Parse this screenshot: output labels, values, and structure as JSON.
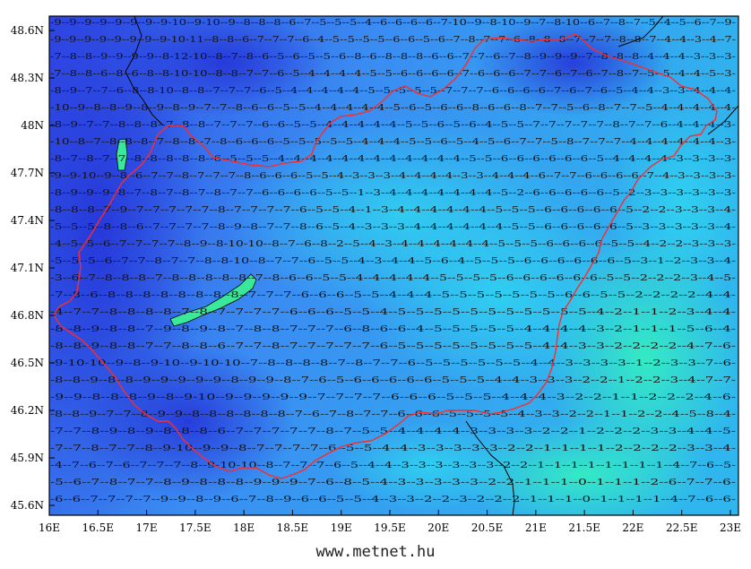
{
  "map": {
    "lon_ticks": [
      "16E",
      "16.5E",
      "17E",
      "17.5E",
      "18E",
      "18.5E",
      "19E",
      "19.5E",
      "20E",
      "20.5E",
      "21E",
      "21.5E",
      "22E",
      "22.5E",
      "23E"
    ],
    "lat_ticks": [
      "48.6N",
      "48.3N",
      "48N",
      "47.7N",
      "47.4N",
      "47.1N",
      "46.8N",
      "46.5N",
      "46.2N",
      "45.9N",
      "45.6N"
    ],
    "colors": {
      "deep_blue": "#2f3fe0",
      "mid_blue": "#3b7cf0",
      "cyan": "#2ec8ee",
      "mint": "#33e8c0",
      "lake_green": "#39e89a",
      "border_red": "#ff2a2a",
      "border_black": "#000000"
    },
    "value_rows": [
      "-9--9--9--9--9--9--9--9-10--9-10--9--8--8--8--6--7--5--5--5--4--6--6--6--6--7-10--9--8-10--9--7--8-10--6--7--8--7--5--4--5--6--7--9-",
      "-9--9--9--9--9--9--9--9-10-11--8--8--6--7--7--7--6--4--5--5--5--5--6--6--5--6--7--8--7--7--6--8--8--8--7--7--7--8--8--7--4--4--3--4--7-",
      "-7--8--8--9--9--9--9--8-12-10--8--7--8--6--5--6--5--5--6--8--6--8--8--8--6--6--7--7--6--7--8--9--9--9--7--8--8--8--4--4--4--3--3--3-",
      "-7--8--8--6--8--6--8--8-10-10--8--8--7--7--6--5--4--4--4--4--5--5--6--6--6--6--7--6--6--6--7--7--6--7--6--7--8--7--5--5--4--4--5--3-",
      "-8--9--7--7--6--8--8-10--8--8--7--7--7--6--5--4--4--4--4--4--5--5--5--5--5--7--7--7--6--6--6--6--7--6--7--6--5--4--4--3--3--4--4--4-",
      "-10--9--8--8--9--8--9--8--9--7--7--8--6--6--5--5--4--4--4--4--4--5--6--5--6--6--8--6--6--8--7--7--5--6--8--7--7--5--4--4--4--4--4-",
      "-8--9--7--7--8--8--8--7--8--8--7--7--7--6--6--5--5--4--4--4--4--4--5--5--6--5--6--4--5--5--7--7--7--7--7--8--7--7--6--4--4--4--3-",
      "-10--8--7--8--8--8--7--8--8--7--8--6--6--6--5--5--5--5--5--4--4--4--5--5--6--5--4--5--6--7--7--5--8--7--7--7--4--4--4--4--4--4--3-",
      "-8--7--8--7--7--8--8--8--8--8--6--5--5--5--4--4--4--4--4--4--4--4--4--4--4--4--5--5--6--6--6--6--6--6--5--4--4--4--4--3--3--3--3-",
      "-9--9-10--9--8--6--7--7--8--7--7--7--8--6--6--6--5--5--4--3--3--3--4--4--4--4--3--3--4--4--4--6--7--7--6--6--6--6--7--4--3--3--3--3-",
      "-8--9--9--9--8--7--8--7--8--7--8--7--7--6--6--6--6--5--5--1--3--4--4--4--4--4--4--4--5--2--6--6--6--6--6--5--2--3--3--3--3--3--3-",
      "-8--8--8--7--9--7--7--7--7--7--8--7--7--7--7--6--5--5--4--1--3--4--4--4--4--4--4--5--5--5--6--6--6--6--6--5--2--2--3--3--3--4-",
      "-5--5--5--8--8--6--7--7--7--7--8--9--8--7--7--8--6--5--4--3--3--3--4--4--4--4--4--4--5--5--6--6--6--6--6--5--3--3--3--3--3--4-",
      "-4--5--5--6--7--7--7--7--8--9--8-10-10--8--7--6--8--2--5--4--3--4--4--4--4--4--4--5--5--5--6--6--6--6--5--5--4--2--2--3--3--3-",
      "-5--5--5--6--7--7--8--7--7--8--8-10--8--7--7--6--5--5--4--3--4--4--5--6--4--5--5--5--6--6--6--6--6--6--5--3--1--2--3--3--4-",
      "-3--6--7--8--8--8--7--8--8--8--8--8--7--8--6--6--5--5--4--4--4--4--4--5--5--5--5--6--6--6--6--6--6--5--5--2--2--2--3--4--5-",
      "-7--8--6--8--8--8--8--8--8--8--8--7--7--7--6--6--6--5--5--4--4--4--5--5--5--5--5--5--5--6--6--5--5--2--2--2--2--4--4-",
      "-4--7--7--8--8--8--8--7--8--7--7--7--7--6--6--6--5--5--4--5--5--5--5--5--5--5--5--5--5--5--4--2--1--1--2--3--4--4-",
      "-8--8--9--8--8--7--9--8--9--8--7--8--8--7--7--7--6--8--6--6--4--5--5--5--5--5--4--4--4--4--3--2--1--1--1--5--6--4-",
      "-8--8--9--8--8--7--7--8--8--6--7--7--8--7--7--7--7--7--6--5--5--5--5--5--5--5--5--4--4--3--3--2--2--2--2--4--7--6-",
      "-9-10-10--9--8--9-10--9-10-10--7--8--8--8--8--7--8--7--7--6--5--5--5--5--5--5--4--4--3--3--3--3--1--2--3--3--7--6-",
      "-8--8--9--8--8--9--9--9--9--9--8--9--9--8--7--6--5--6--6--6--6--6--5--5--5--4--4--3--3--3--2--2--1--2--2--3--4--7--7-",
      "-9--9--8--8--8--9--8--9-10--9--9--9--9--9--7--7--7--7--6--6--6--5--5--5--4--4--4--3--2--2--1--1--2--2--2--4--6-",
      "-8--8--9--7--7--8--9--9--8--8--8--8--8--8--7--6--7--8--7--7--6--6--6--5--5--5--5--4--3--3--2--2--1--1--2--2--4--5--8--4-",
      "-7--7--8--9--8--9--8--8--8--6--7--7--7--7--7--8--7--5--5--4--4--4--4--3--3--3--3--2--2--1--2--2--2--3--3--4--4--5-",
      "-7--7--8--7--7--8--9-10--9--9--8--7--7--7--7--6--5--5--4--4--3--3--3--3--3--2--2--1--1--1--1--2--2--2--2--3--3--4-",
      "-4--7--6--7--6--7--7--7--8--9-10-10--8--7--7--7--6--5--4--4--3--3--3--3--3--3--2--2--1--1--1--1--1--1--1--1--4--7--6--5-",
      "-5--6--7--8--7--7--8--9--8--8--8--9--9--9--7--6--8--5--4--3--3--3--3--3--2--2--1--1--1--0--1--1--1--2--6--7--7--6-",
      "-6--6--7--7--7--7--9--9--8--9--6--7--8--9--6--6--5--5--4--3--3--2--2--3--2--2--2--1--1--1--0--1--1--1--1--4--7--6--6-"
    ]
  },
  "footer": {
    "credit": "www.metnet.hu"
  }
}
